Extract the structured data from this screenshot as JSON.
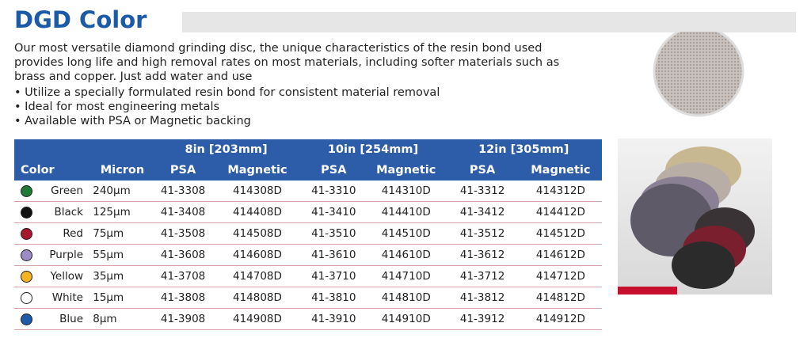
{
  "header": {
    "title": "DGD Color"
  },
  "description": "Our most versatile diamond grinding disc, the unique characteristics of the resin bond used provides long life and high removal rates on most materials, including softer materials such as brass and copper. Just add water and use",
  "bullets": [
    "• Utilize a specially formulated resin bond for consistent material removal",
    "• Ideal for most engineering metals",
    "• Available with PSA or Magnetic backing"
  ],
  "table": {
    "groups": [
      "8in [203mm]",
      "10in [254mm]",
      "12in [305mm]"
    ],
    "columns": [
      "Color",
      "Micron",
      "PSA",
      "Magnetic",
      "PSA",
      "Magnetic",
      "PSA",
      "Magnetic"
    ],
    "swatches": [
      "#1e7a34",
      "#111111",
      "#a5182e",
      "#9b8cc8",
      "#f4b321",
      "#ffffff",
      "#1f5aa8"
    ],
    "rows": [
      [
        "Green",
        "240µm",
        "41-3308",
        "414308D",
        "41-3310",
        "414310D",
        "41-3312",
        "414312D"
      ],
      [
        "Black",
        "125µm",
        "41-3408",
        "414408D",
        "41-3410",
        "414410D",
        "41-3412",
        "414412D"
      ],
      [
        "Red",
        "75µm",
        "41-3508",
        "414508D",
        "41-3510",
        "414510D",
        "41-3512",
        "414512D"
      ],
      [
        "Purple",
        "55µm",
        "41-3608",
        "414608D",
        "41-3610",
        "414610D",
        "41-3612",
        "414612D"
      ],
      [
        "Yellow",
        "35µm",
        "41-3708",
        "414708D",
        "41-3710",
        "414710D",
        "41-3712",
        "414712D"
      ],
      [
        "White",
        "15µm",
        "41-3808",
        "414808D",
        "41-3810",
        "414810D",
        "41-3812",
        "414812D"
      ],
      [
        "Blue",
        "8µm",
        "41-3908",
        "414908D",
        "41-3910",
        "414910D",
        "41-3912",
        "414912D"
      ]
    ]
  }
}
